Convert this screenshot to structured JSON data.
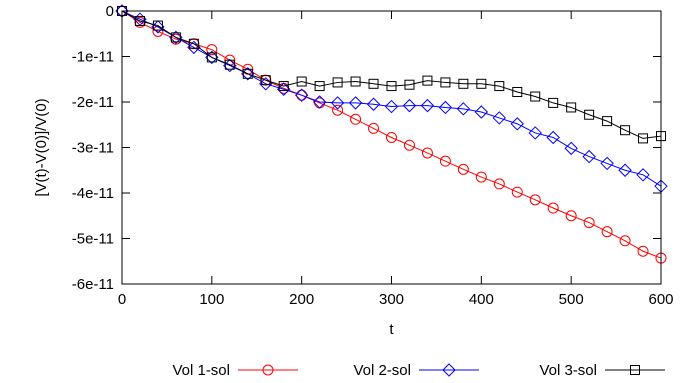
{
  "chart_data": {
    "type": "line",
    "title": "",
    "xlabel": "t",
    "ylabel": "[V(t)-V(0)]/V(0)",
    "xlim": [
      0,
      600
    ],
    "ylim": [
      -6e-11,
      0
    ],
    "xticks": [
      0,
      100,
      200,
      300,
      400,
      500,
      600
    ],
    "xtick_labels": [
      "0",
      "100",
      "200",
      "300",
      "400",
      "500",
      "600"
    ],
    "yticks": [
      0,
      -1e-11,
      -2e-11,
      -3e-11,
      -4e-11,
      -5e-11,
      -6e-11
    ],
    "ytick_labels": [
      "0",
      "-1e-11",
      "-2e-11",
      "-3e-11",
      "-4e-11",
      "-5e-11",
      "-6e-11"
    ],
    "grid": false,
    "legend_position": "bottom",
    "x": [
      0,
      20,
      40,
      60,
      80,
      100,
      120,
      140,
      160,
      180,
      200,
      220,
      240,
      260,
      280,
      300,
      320,
      340,
      360,
      380,
      400,
      420,
      440,
      460,
      480,
      500,
      520,
      540,
      560,
      580,
      600
    ],
    "series": [
      {
        "name": "Vol 1-sol",
        "color": "#ff0000",
        "marker": "circle",
        "values": [
          0,
          -2.5e-12,
          -4.5e-12,
          -6.2e-12,
          -7.2e-12,
          -8.5e-12,
          -1.08e-11,
          -1.28e-11,
          -1.52e-11,
          -1.7e-11,
          -1.85e-11,
          -2.02e-11,
          -2.18e-11,
          -2.38e-11,
          -2.58e-11,
          -2.78e-11,
          -2.95e-11,
          -3.12e-11,
          -3.3e-11,
          -3.48e-11,
          -3.65e-11,
          -3.8e-11,
          -3.98e-11,
          -4.15e-11,
          -4.33e-11,
          -4.5e-11,
          -4.65e-11,
          -4.85e-11,
          -5.05e-11,
          -5.28e-11,
          -5.43e-11
        ]
      },
      {
        "name": "Vol 2-sol",
        "color": "#0000ff",
        "marker": "diamond",
        "values": [
          0,
          -1.8e-12,
          -3.5e-12,
          -5.8e-12,
          -8e-12,
          -1.02e-11,
          -1.2e-11,
          -1.38e-11,
          -1.6e-11,
          -1.72e-11,
          -1.85e-11,
          -2e-11,
          -2.02e-11,
          -2.02e-11,
          -2.05e-11,
          -2.1e-11,
          -2.08e-11,
          -2.08e-11,
          -2.12e-11,
          -2.15e-11,
          -2.22e-11,
          -2.35e-11,
          -2.48e-11,
          -2.68e-11,
          -2.78e-11,
          -3.02e-11,
          -3.2e-11,
          -3.35e-11,
          -3.5e-11,
          -3.6e-11,
          -3.85e-11
        ]
      },
      {
        "name": "Vol 3-sol",
        "color": "#000000",
        "marker": "square",
        "values": [
          0,
          -2.2e-12,
          -3.2e-12,
          -5.8e-12,
          -7.2e-12,
          -1.02e-11,
          -1.18e-11,
          -1.38e-11,
          -1.52e-11,
          -1.65e-11,
          -1.55e-11,
          -1.65e-11,
          -1.57e-11,
          -1.55e-11,
          -1.6e-11,
          -1.65e-11,
          -1.62e-11,
          -1.53e-11,
          -1.57e-11,
          -1.6e-11,
          -1.6e-11,
          -1.65e-11,
          -1.78e-11,
          -1.88e-11,
          -2.02e-11,
          -2.12e-11,
          -2.28e-11,
          -2.42e-11,
          -2.62e-11,
          -2.8e-11,
          -2.75e-11
        ]
      }
    ]
  }
}
